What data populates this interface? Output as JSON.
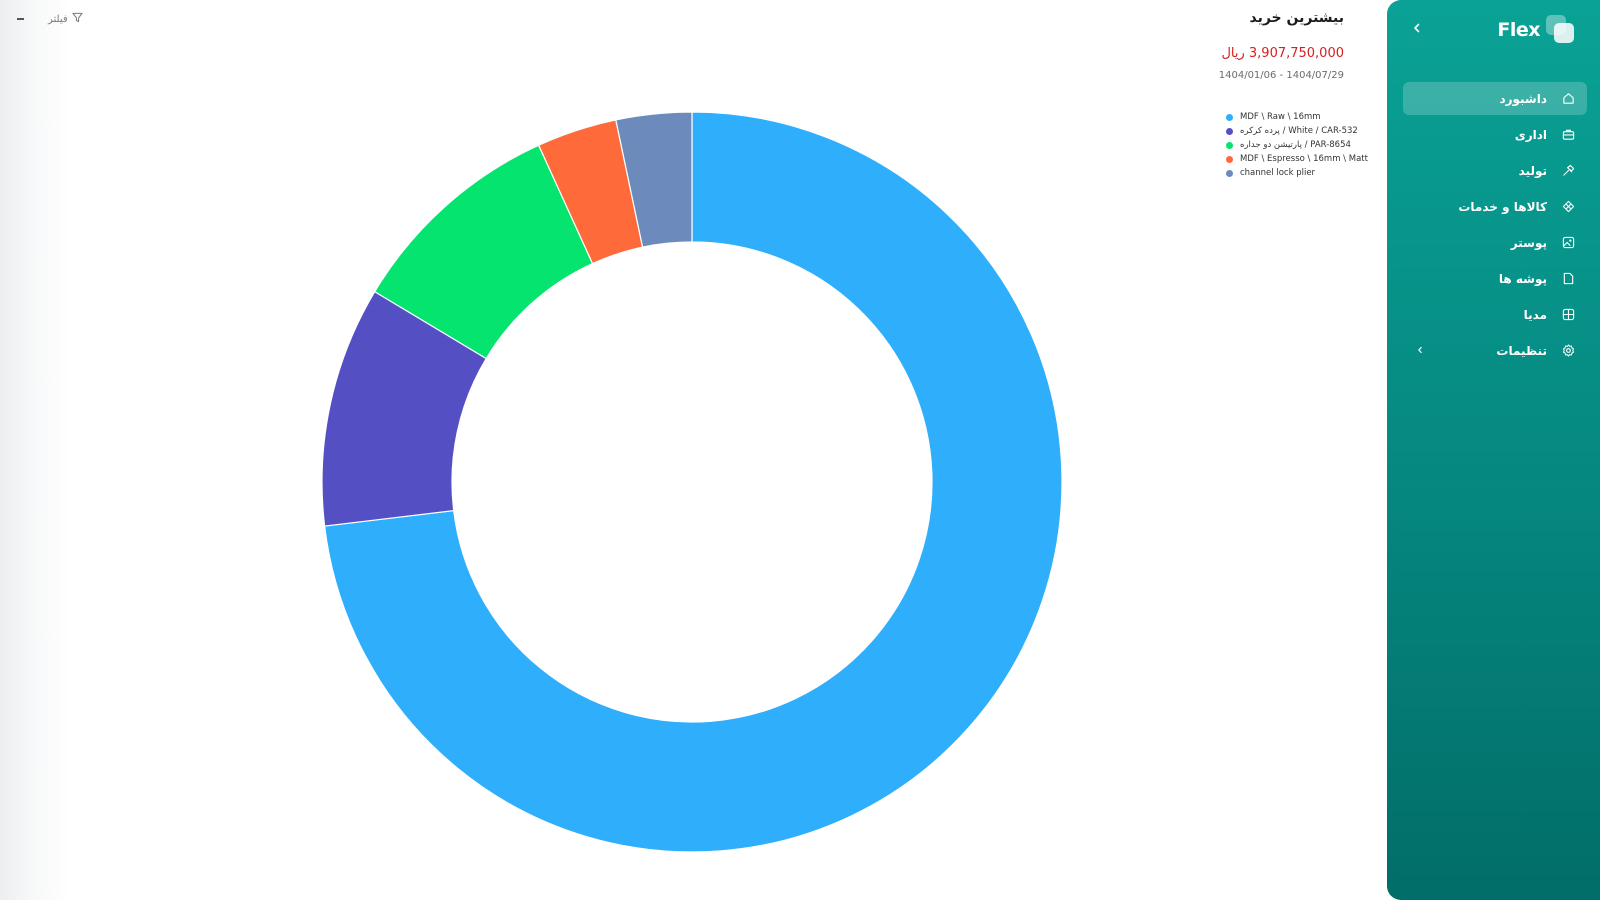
{
  "sidebar": {
    "brand": "Flex",
    "items": [
      {
        "label": "داشبورد",
        "icon": "home-icon",
        "active": true
      },
      {
        "label": "اداری",
        "icon": "briefcase-icon",
        "active": false
      },
      {
        "label": "تولید",
        "icon": "hammer-icon",
        "active": false
      },
      {
        "label": "کالاها و خدمات",
        "icon": "diamond-grid-icon",
        "active": false
      },
      {
        "label": "پوستر",
        "icon": "image-icon",
        "active": false
      },
      {
        "label": "پوشه ها",
        "icon": "folder-icon",
        "active": false
      },
      {
        "label": "مدیا",
        "icon": "media-grid-icon",
        "active": false
      },
      {
        "label": "تنظیمات",
        "icon": "gear-icon",
        "active": false,
        "has_submenu": true
      }
    ]
  },
  "header": {
    "title": "بیشترین خرید",
    "amount": "3,907,750,000 ریال",
    "date_range": "1404/01/06 - 1404/07/29",
    "filter_label": "فیلتر"
  },
  "chart_data": {
    "type": "pie",
    "donut": true,
    "title": "بیشترین خرید",
    "legend_position": "top-right",
    "categories": [
      "MDF \\ Raw \\ 16mm",
      "پرده کرکره / White / CAR-532",
      "پارتیشن دو جداره / PAR-8654",
      "MDF \\ Espresso \\ 16mm \\ Matt",
      "channel lock plier"
    ],
    "values": [
      73.1,
      10.5,
      9.6,
      3.5,
      3.3
    ],
    "colors": [
      "#2eaefb",
      "#5450c4",
      "#04e46f",
      "#ff6a3a",
      "#6c8abb"
    ]
  }
}
